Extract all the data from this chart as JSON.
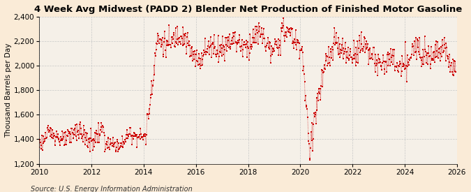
{
  "title": "4 Week Avg Midwest (PADD 2) Blender Net Production of Finished Motor Gasoline",
  "ylabel": "Thousand Barrels per Day",
  "source": "Source: U.S. Energy Information Administration",
  "background_color": "#faebd7",
  "plot_bg_color": "#f5f0e8",
  "line_color": "#cc0000",
  "grid_color": "#c8c8c8",
  "xlim": [
    2010.0,
    2026.0
  ],
  "ylim": [
    1200,
    2400
  ],
  "yticks": [
    1200,
    1400,
    1600,
    1800,
    2000,
    2200,
    2400
  ],
  "xticks": [
    2010,
    2012,
    2014,
    2016,
    2018,
    2020,
    2022,
    2024,
    2026
  ],
  "title_fontsize": 9.5,
  "ylabel_fontsize": 7.5,
  "tick_fontsize": 7.5,
  "source_fontsize": 7.0
}
